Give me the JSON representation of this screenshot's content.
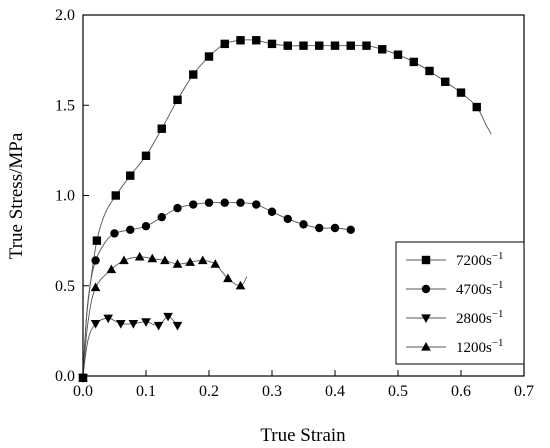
{
  "chart_data": {
    "type": "line",
    "title": "",
    "xlabel": "True Strain",
    "ylabel": "True Stress/MPa",
    "xlim": [
      0.0,
      0.7
    ],
    "ylim": [
      0.0,
      2.0
    ],
    "xticks": [
      "0.0",
      "0.1",
      "0.2",
      "0.3",
      "0.4",
      "0.5",
      "0.6",
      "0.7"
    ],
    "yticks": [
      "0.0",
      "0.5",
      "1.0",
      "1.5",
      "2.0"
    ],
    "grid": false,
    "legend_position": "lower-right",
    "series": [
      {
        "name": "7200s",
        "name_sup": "−1",
        "marker": "square",
        "markers": [
          [
            0.0,
            -0.01
          ],
          [
            0.022,
            0.75
          ],
          [
            0.052,
            1.0
          ],
          [
            0.075,
            1.11
          ],
          [
            0.1,
            1.22
          ],
          [
            0.125,
            1.37
          ],
          [
            0.15,
            1.53
          ],
          [
            0.175,
            1.67
          ],
          [
            0.2,
            1.77
          ],
          [
            0.225,
            1.84
          ],
          [
            0.25,
            1.86
          ],
          [
            0.275,
            1.86
          ],
          [
            0.3,
            1.84
          ],
          [
            0.325,
            1.83
          ],
          [
            0.35,
            1.83
          ],
          [
            0.375,
            1.83
          ],
          [
            0.4,
            1.83
          ],
          [
            0.425,
            1.83
          ],
          [
            0.45,
            1.83
          ],
          [
            0.475,
            1.81
          ],
          [
            0.5,
            1.78
          ],
          [
            0.525,
            1.74
          ],
          [
            0.55,
            1.69
          ],
          [
            0.575,
            1.63
          ],
          [
            0.6,
            1.57
          ],
          [
            0.625,
            1.49
          ]
        ],
        "curve": [
          [
            0.0,
            0.0
          ],
          [
            0.005,
            0.3
          ],
          [
            0.012,
            0.52
          ],
          [
            0.022,
            0.75
          ],
          [
            0.035,
            0.9
          ],
          [
            0.052,
            1.0
          ],
          [
            0.075,
            1.11
          ],
          [
            0.1,
            1.22
          ],
          [
            0.125,
            1.37
          ],
          [
            0.15,
            1.53
          ],
          [
            0.175,
            1.67
          ],
          [
            0.2,
            1.77
          ],
          [
            0.225,
            1.84
          ],
          [
            0.25,
            1.86
          ],
          [
            0.275,
            1.86
          ],
          [
            0.3,
            1.84
          ],
          [
            0.325,
            1.83
          ],
          [
            0.35,
            1.83
          ],
          [
            0.375,
            1.83
          ],
          [
            0.4,
            1.83
          ],
          [
            0.425,
            1.83
          ],
          [
            0.45,
            1.83
          ],
          [
            0.475,
            1.81
          ],
          [
            0.5,
            1.78
          ],
          [
            0.525,
            1.74
          ],
          [
            0.55,
            1.69
          ],
          [
            0.575,
            1.63
          ],
          [
            0.6,
            1.57
          ],
          [
            0.625,
            1.49
          ],
          [
            0.64,
            1.39
          ],
          [
            0.648,
            1.34
          ]
        ]
      },
      {
        "name": "4700s",
        "name_sup": "−1",
        "marker": "circle",
        "markers": [
          [
            0.0,
            -0.01
          ],
          [
            0.02,
            0.64
          ],
          [
            0.05,
            0.79
          ],
          [
            0.075,
            0.81
          ],
          [
            0.1,
            0.83
          ],
          [
            0.125,
            0.88
          ],
          [
            0.15,
            0.93
          ],
          [
            0.175,
            0.95
          ],
          [
            0.2,
            0.96
          ],
          [
            0.225,
            0.96
          ],
          [
            0.25,
            0.96
          ],
          [
            0.275,
            0.95
          ],
          [
            0.3,
            0.91
          ],
          [
            0.325,
            0.87
          ],
          [
            0.35,
            0.84
          ],
          [
            0.375,
            0.82
          ],
          [
            0.4,
            0.82
          ],
          [
            0.425,
            0.81
          ]
        ],
        "curve": [
          [
            0.0,
            0.0
          ],
          [
            0.006,
            0.35
          ],
          [
            0.012,
            0.52
          ],
          [
            0.02,
            0.64
          ],
          [
            0.035,
            0.74
          ],
          [
            0.05,
            0.79
          ],
          [
            0.075,
            0.81
          ],
          [
            0.1,
            0.83
          ],
          [
            0.125,
            0.88
          ],
          [
            0.15,
            0.93
          ],
          [
            0.175,
            0.95
          ],
          [
            0.2,
            0.96
          ],
          [
            0.225,
            0.96
          ],
          [
            0.25,
            0.96
          ],
          [
            0.275,
            0.95
          ],
          [
            0.3,
            0.91
          ],
          [
            0.325,
            0.87
          ],
          [
            0.35,
            0.84
          ],
          [
            0.375,
            0.82
          ],
          [
            0.4,
            0.82
          ],
          [
            0.425,
            0.81
          ]
        ]
      },
      {
        "name": "2800s",
        "name_sup": "−1",
        "marker": "triangle-down",
        "markers": [
          [
            0.0,
            -0.01
          ],
          [
            0.02,
            0.29
          ],
          [
            0.04,
            0.32
          ],
          [
            0.06,
            0.29
          ],
          [
            0.08,
            0.29
          ],
          [
            0.1,
            0.3
          ],
          [
            0.12,
            0.28
          ],
          [
            0.135,
            0.33
          ],
          [
            0.15,
            0.28
          ]
        ],
        "curve": [
          [
            0.0,
            0.0
          ],
          [
            0.008,
            0.2
          ],
          [
            0.02,
            0.29
          ],
          [
            0.04,
            0.32
          ],
          [
            0.06,
            0.29
          ],
          [
            0.08,
            0.29
          ],
          [
            0.1,
            0.3
          ],
          [
            0.12,
            0.28
          ],
          [
            0.135,
            0.33
          ],
          [
            0.15,
            0.28
          ]
        ]
      },
      {
        "name": "1200s",
        "name_sup": "−1",
        "marker": "triangle-up",
        "markers": [
          [
            0.0,
            -0.01
          ],
          [
            0.02,
            0.49
          ],
          [
            0.045,
            0.59
          ],
          [
            0.065,
            0.64
          ],
          [
            0.09,
            0.66
          ],
          [
            0.11,
            0.65
          ],
          [
            0.13,
            0.64
          ],
          [
            0.15,
            0.62
          ],
          [
            0.17,
            0.63
          ],
          [
            0.19,
            0.64
          ],
          [
            0.21,
            0.62
          ],
          [
            0.23,
            0.54
          ],
          [
            0.25,
            0.5
          ]
        ],
        "curve": [
          [
            0.0,
            0.0
          ],
          [
            0.008,
            0.3
          ],
          [
            0.02,
            0.49
          ],
          [
            0.045,
            0.59
          ],
          [
            0.065,
            0.64
          ],
          [
            0.09,
            0.66
          ],
          [
            0.11,
            0.65
          ],
          [
            0.13,
            0.64
          ],
          [
            0.15,
            0.62
          ],
          [
            0.17,
            0.63
          ],
          [
            0.19,
            0.64
          ],
          [
            0.21,
            0.62
          ],
          [
            0.23,
            0.54
          ],
          [
            0.25,
            0.5
          ],
          [
            0.26,
            0.55
          ]
        ]
      }
    ]
  }
}
